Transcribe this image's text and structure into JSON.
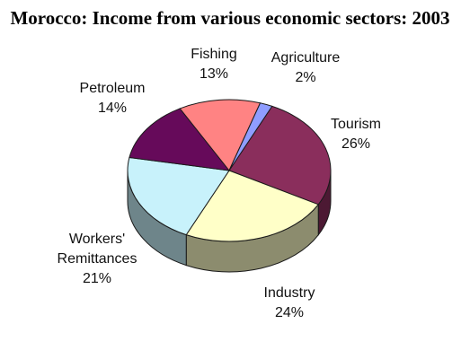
{
  "chart_data": {
    "type": "pie",
    "style": "3d",
    "title": "Morocco: Income from various economic sectors: 2003",
    "slices": [
      {
        "label": [
          "Tourism"
        ],
        "value": 26,
        "value_label": "26%",
        "color": "#8a2e5c"
      },
      {
        "label": [
          "Industry"
        ],
        "value": 24,
        "value_label": "24%",
        "color": "#ffffc8"
      },
      {
        "label": [
          "Workers'",
          "Remittances"
        ],
        "value": 21,
        "value_label": "21%",
        "color": "#c8f2fb"
      },
      {
        "label": [
          "Petroleum"
        ],
        "value": 14,
        "value_label": "14%",
        "color": "#660a5a"
      },
      {
        "label": [
          "Fishing"
        ],
        "value": 13,
        "value_label": "13%",
        "color": "#ff8383"
      },
      {
        "label": [
          "Agriculture"
        ],
        "value": 2,
        "value_label": "2%",
        "color": "#8f9dff"
      }
    ]
  }
}
